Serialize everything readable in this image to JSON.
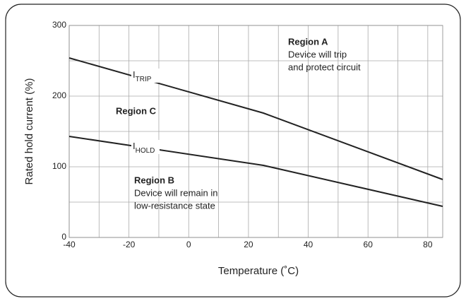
{
  "chart_data": {
    "type": "line",
    "x_label": "Temperature (˚C)",
    "y_label": "Rated hold current (%)",
    "series": [
      {
        "name": "I",
        "subscript": "TRIP",
        "color": "#222222",
        "x": [
          -40,
          25,
          85
        ],
        "values": [
          254,
          176,
          82
        ]
      },
      {
        "name": "I",
        "subscript": "HOLD",
        "color": "#222222",
        "x": [
          -40,
          25,
          85
        ],
        "values": [
          143,
          102,
          44
        ]
      }
    ],
    "xlim": [
      -40,
      85
    ],
    "ylim": [
      0,
      300
    ],
    "xticks": [
      -40,
      -20,
      0,
      20,
      40,
      60,
      80
    ],
    "yticks": [
      0,
      100,
      200,
      300
    ],
    "xgrid": [
      -30,
      -10,
      10,
      30,
      50,
      70
    ],
    "ygrid": [
      50,
      150,
      250
    ],
    "grid": true,
    "annotations": [
      {
        "title": "Region A",
        "lines": [
          "Device will trip",
          "and protect circuit"
        ]
      },
      {
        "title": "Region C",
        "lines": []
      },
      {
        "title": "Region B",
        "lines": [
          "Device will remain in",
          "low-resistance state"
        ]
      }
    ]
  }
}
